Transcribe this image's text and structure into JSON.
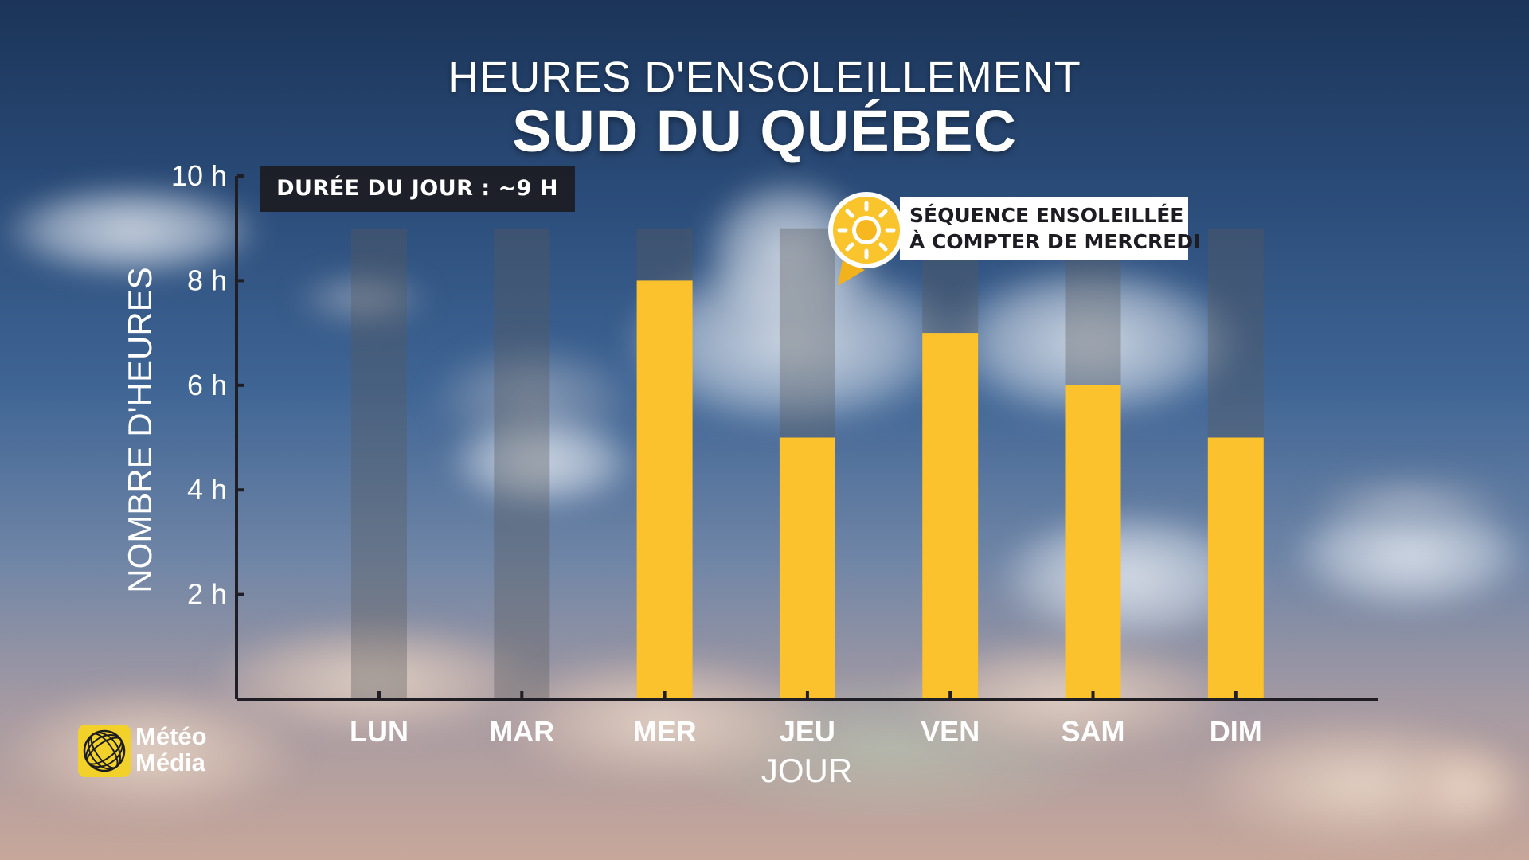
{
  "header": {
    "title": "HEURES D'ENSOLEILLEMENT",
    "subtitle": "SUD DU QUÉBEC"
  },
  "day_length_badge": "DURÉE DU JOUR : ~9 H",
  "callout": {
    "line1": "SÉQUENCE ENSOLEILLÉE",
    "line2": "À COMPTER DE MERCREDI",
    "icon": "sun-icon"
  },
  "logo": {
    "line1": "Météo",
    "line2": "Média"
  },
  "colors": {
    "bar": "#fcc22d",
    "bar_background": "rgba(90,90,90,0.35)",
    "axis": "#1e1e24",
    "logo": "#f2d22a"
  },
  "chart_data": {
    "type": "bar",
    "title": "HEURES D'ENSOLEILLEMENT",
    "subtitle": "SUD DU QUÉBEC",
    "xlabel": "JOUR",
    "ylabel": "NOMBRE D'HEURES",
    "ylim": [
      0,
      10
    ],
    "yticks": [
      2,
      4,
      6,
      8,
      10
    ],
    "ytick_labels": [
      "2 h",
      "4 h",
      "6 h",
      "8 h",
      "10 h"
    ],
    "categories": [
      "LUN",
      "MAR",
      "MER",
      "JEU",
      "VEN",
      "SAM",
      "DIM"
    ],
    "values": [
      0,
      0,
      8,
      5,
      7,
      6,
      5
    ],
    "max_possible": 9,
    "grid": false,
    "legend": "none"
  }
}
